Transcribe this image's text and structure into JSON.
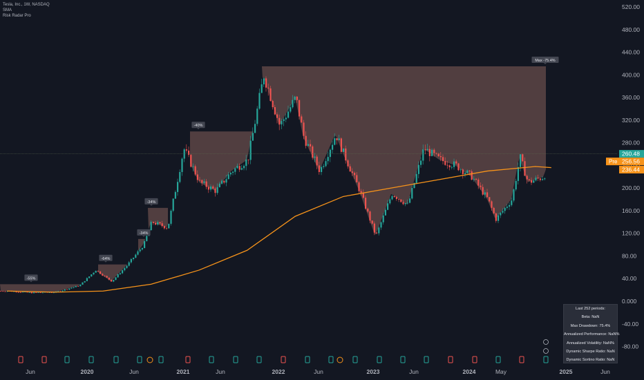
{
  "legend": {
    "symbol": "Tesla, Inc., 1W, NASDAQ",
    "indicator1": "SMA",
    "indicator2": "Risk Radar Pro"
  },
  "colors": {
    "background": "#131722",
    "up": "#26a69a",
    "down": "#ef5350",
    "sma": "#f7931a",
    "drawdown_fill": "#5d4545",
    "grid_text": "#b2b5be"
  },
  "price_axis": {
    "ticks": [
      "520.00",
      "480.00",
      "440.00",
      "400.00",
      "360.00",
      "320.00",
      "280.00",
      "240.00",
      "200.00",
      "160.00",
      "120.00",
      "80.00",
      "40.00",
      "0.000",
      "-40.00",
      "-80.00"
    ],
    "last_price": "260.48",
    "pre_label": "Pre",
    "pre_price": "256.56",
    "sma_price": "236.44"
  },
  "time_axis": {
    "labels": [
      "Jun",
      "2020",
      "Jun",
      "2021",
      "Jun",
      "2022",
      "Jun",
      "2023",
      "Jun",
      "2024",
      "May",
      "2025",
      "Jun"
    ]
  },
  "drawdown_labels": [
    "-55%",
    "-64%",
    "-34%",
    "-34%",
    "-40%",
    "Max -75.4%"
  ],
  "stats_box": {
    "title": "Last 252 periods:",
    "beta": "Beta: NaN",
    "max_drawdown": "Max Drawdown: 75.4%",
    "annualized_performance": "Annualized Performance: NaN%",
    "annualized_volatility": "Annualized Volatility: NaN%",
    "sharpe": "Dynamic Sharpe Ratio: NaN",
    "sortino": "Dynamic Sortino Ratio: NaN"
  },
  "chart_data": {
    "type": "line",
    "title": "Tesla, Inc., 1W, NASDAQ",
    "ylim": [
      -90,
      530
    ],
    "series": [
      {
        "name": "TSLA",
        "x": [
          "2019-03",
          "2019-06",
          "2019-09",
          "2019-12",
          "2020-02",
          "2020-04",
          "2020-06",
          "2020-08",
          "2020-09",
          "2020-11",
          "2021-01",
          "2021-03",
          "2021-05",
          "2021-07",
          "2021-09",
          "2021-11",
          "2022-01",
          "2022-03",
          "2022-04",
          "2022-06",
          "2022-08",
          "2022-09",
          "2022-11",
          "2023-01",
          "2023-03",
          "2023-05",
          "2023-07",
          "2023-09",
          "2023-11",
          "2024-01",
          "2024-03",
          "2024-04",
          "2024-06",
          "2024-07",
          "2024-08",
          "2024-10",
          "2024-11"
        ],
        "values": [
          18,
          15,
          16,
          28,
          55,
          35,
          65,
          100,
          140,
          130,
          270,
          210,
          195,
          230,
          250,
          400,
          310,
          360,
          290,
          230,
          295,
          260,
          195,
          115,
          190,
          170,
          270,
          250,
          240,
          220,
          180,
          145,
          180,
          255,
          210,
          220,
          260
        ]
      },
      {
        "name": "SMA",
        "x": [
          "2019-03",
          "2019-09",
          "2020-03",
          "2020-09",
          "2021-03",
          "2021-09",
          "2022-03",
          "2022-09",
          "2023-03",
          "2023-09",
          "2024-03",
          "2024-09",
          "2024-11"
        ],
        "values": [
          18,
          16,
          18,
          30,
          55,
          90,
          150,
          185,
          200,
          215,
          230,
          238,
          236
        ]
      }
    ],
    "drawdowns": [
      {
        "label": "-55%",
        "peak": 30
      },
      {
        "label": "-64%",
        "peak": 65
      },
      {
        "label": "-34%",
        "peak": 110
      },
      {
        "label": "-34%",
        "peak": 165
      },
      {
        "label": "-40%",
        "peak": 300
      },
      {
        "label": "Max -75.4%",
        "peak": 415
      }
    ]
  }
}
